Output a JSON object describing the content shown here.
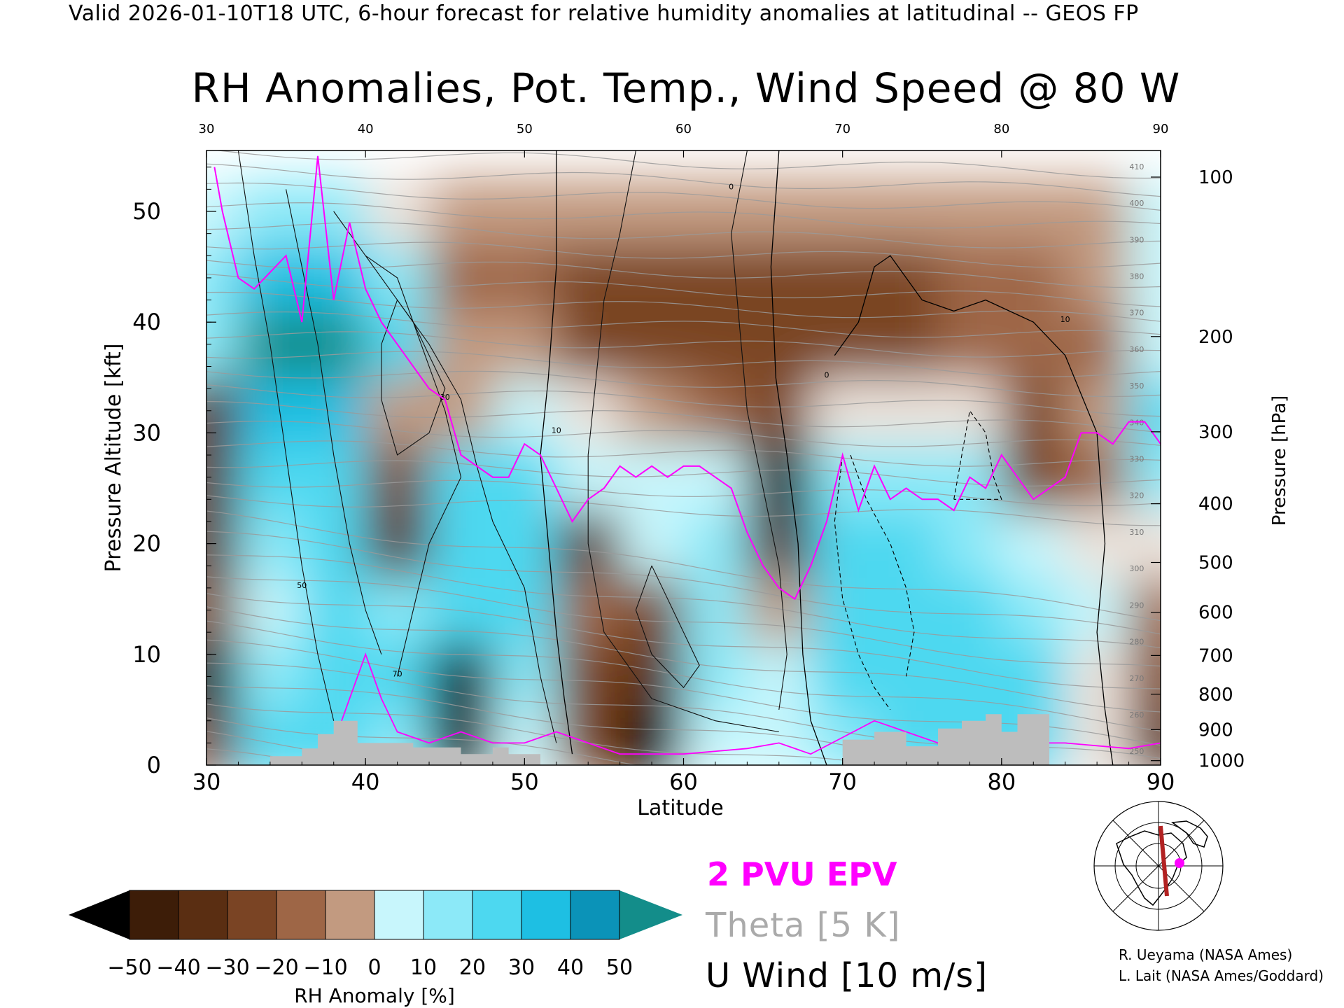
{
  "header": "Valid 2026-01-10T18 UTC, 6-hour forecast for relative humidity anomalies at latitudinal -- GEOS FP",
  "chart_data": {
    "type": "heatmap",
    "title": "RH Anomalies, Pot. Temp., Wind Speed @ 80 W",
    "xlabel": "Latitude",
    "ylabel": "Pressure Altitude [kft]",
    "y2label": "Pressure [hPa]",
    "xlim": [
      30,
      90
    ],
    "ylim": [
      0,
      55.5
    ],
    "x_ticks": [
      30,
      40,
      50,
      60,
      70,
      80,
      90
    ],
    "y_ticks": [
      0,
      10,
      20,
      30,
      40,
      50
    ],
    "pressure_ticks": [
      {
        "label": "100",
        "kft": 53.1
      },
      {
        "label": "200",
        "kft": 38.7
      },
      {
        "label": "300",
        "kft": 30.1
      },
      {
        "label": "400",
        "kft": 23.6
      },
      {
        "label": "500",
        "kft": 18.3
      },
      {
        "label": "600",
        "kft": 13.8
      },
      {
        "label": "700",
        "kft": 9.9
      },
      {
        "label": "800",
        "kft": 6.4
      },
      {
        "label": "900",
        "kft": 3.2
      },
      {
        "label": "1000",
        "kft": 0.4
      }
    ],
    "colorbar": {
      "label": "RH Anomaly [%]",
      "ticks": [
        "−50",
        "−40",
        "−30",
        "−20",
        "−10",
        "0",
        "10",
        "20",
        "30",
        "40",
        "50"
      ],
      "colors": [
        "#3d1d08",
        "#5a2e12",
        "#7a4424",
        "#9e6646",
        "#c29a80",
        "#ede3db",
        "#c8f6fc",
        "#8ce9f8",
        "#4dd8f0",
        "#1ebfe3",
        "#0b93b8"
      ],
      "under_color": "#000000",
      "over_color": "#138d8a"
    },
    "rh_anomaly_grid": {
      "lat": [
        30,
        34,
        38,
        42,
        46,
        50,
        54,
        58,
        62,
        66,
        70,
        74,
        78,
        82,
        86,
        90
      ],
      "kft": [
        2,
        8,
        14,
        20,
        26,
        32,
        38,
        44,
        50
      ],
      "values": [
        [
          -30,
          30,
          30,
          20,
          -50,
          10,
          -30,
          -50,
          10,
          5,
          20,
          30,
          30,
          30,
          0,
          -40
        ],
        [
          -50,
          20,
          30,
          30,
          -50,
          20,
          -30,
          -40,
          20,
          10,
          30,
          30,
          30,
          30,
          0,
          -30
        ],
        [
          -30,
          10,
          30,
          20,
          30,
          30,
          -20,
          -30,
          20,
          -10,
          30,
          30,
          30,
          20,
          10,
          -20
        ],
        [
          -40,
          20,
          30,
          -40,
          30,
          30,
          -40,
          10,
          20,
          -40,
          30,
          30,
          20,
          10,
          0,
          0
        ],
        [
          -40,
          30,
          30,
          -30,
          30,
          30,
          10,
          10,
          10,
          -50,
          20,
          20,
          20,
          -30,
          -20,
          20
        ],
        [
          -40,
          40,
          40,
          -10,
          -10,
          10,
          0,
          -10,
          -20,
          -30,
          0,
          0,
          0,
          -30,
          -10,
          30
        ],
        [
          20,
          50,
          50,
          30,
          -10,
          -10,
          -30,
          -30,
          -30,
          -30,
          -30,
          -30,
          -20,
          -20,
          -20,
          10
        ],
        [
          20,
          40,
          40,
          20,
          -20,
          -20,
          -30,
          -30,
          -30,
          -30,
          -30,
          -30,
          -25,
          -20,
          -15,
          5
        ],
        [
          10,
          20,
          20,
          0,
          -10,
          -10,
          -10,
          -10,
          -10,
          -10,
          -10,
          -10,
          -10,
          -10,
          -10,
          5
        ]
      ]
    },
    "epv_2pvu_line": [
      [
        30.5,
        54
      ],
      [
        31,
        50
      ],
      [
        32,
        44
      ],
      [
        33,
        43
      ],
      [
        35,
        46
      ],
      [
        36,
        40
      ],
      [
        37,
        55
      ],
      [
        38,
        42
      ],
      [
        39,
        49
      ],
      [
        40,
        43
      ],
      [
        41,
        40
      ],
      [
        42,
        38
      ],
      [
        43,
        36
      ],
      [
        44,
        34
      ],
      [
        45,
        33
      ],
      [
        46,
        28
      ],
      [
        47,
        27
      ],
      [
        48,
        26
      ],
      [
        49,
        26
      ],
      [
        50,
        29
      ],
      [
        51,
        28
      ],
      [
        52,
        25
      ],
      [
        53,
        22
      ],
      [
        54,
        24
      ],
      [
        55,
        25
      ],
      [
        56,
        27
      ],
      [
        57,
        26
      ],
      [
        58,
        27
      ],
      [
        59,
        26
      ],
      [
        60,
        27
      ],
      [
        61,
        27
      ],
      [
        62,
        26
      ],
      [
        63,
        25
      ],
      [
        64,
        21
      ],
      [
        65,
        18
      ],
      [
        66,
        16
      ],
      [
        67,
        15
      ],
      [
        68,
        18
      ],
      [
        69,
        22
      ],
      [
        70,
        28
      ],
      [
        71,
        23
      ],
      [
        72,
        27
      ],
      [
        73,
        24
      ],
      [
        74,
        25
      ],
      [
        75,
        24
      ],
      [
        76,
        24
      ],
      [
        77,
        23
      ],
      [
        78,
        26
      ],
      [
        79,
        25
      ],
      [
        80,
        28
      ],
      [
        81,
        26
      ],
      [
        82,
        24
      ],
      [
        83,
        25
      ],
      [
        84,
        26
      ],
      [
        85,
        30
      ],
      [
        86,
        30
      ],
      [
        87,
        29
      ],
      [
        88,
        31
      ],
      [
        89,
        31
      ],
      [
        90,
        29
      ]
    ],
    "wind_zero_line": [
      [
        52,
        55.5
      ],
      [
        52,
        45
      ],
      [
        51.5,
        35
      ],
      [
        51,
        28
      ],
      [
        51.5,
        20
      ],
      [
        52,
        12
      ],
      [
        52.5,
        6
      ],
      [
        53,
        1
      ]
    ],
    "wind_zero_line_2": [
      [
        66,
        55.5
      ],
      [
        65.5,
        45
      ],
      [
        65.8,
        35
      ],
      [
        66.5,
        28
      ],
      [
        67.2,
        20
      ],
      [
        67.5,
        10
      ],
      [
        68,
        4
      ],
      [
        69,
        0
      ]
    ],
    "wind_zero_line_3": [
      [
        69.5,
        37
      ],
      [
        71,
        40
      ],
      [
        72,
        45
      ],
      [
        73,
        46
      ],
      [
        75,
        42
      ],
      [
        77,
        41
      ],
      [
        79,
        42
      ],
      [
        82,
        40
      ],
      [
        84,
        37
      ],
      [
        86,
        30
      ],
      [
        86.5,
        20
      ],
      [
        86,
        12
      ],
      [
        86.5,
        5
      ],
      [
        87,
        0
      ]
    ],
    "terrain": [
      [
        34,
        0
      ],
      [
        34,
        0.8
      ],
      [
        36,
        0.8
      ],
      [
        36,
        1.5
      ],
      [
        37,
        1.5
      ],
      [
        37,
        2.8
      ],
      [
        38,
        2.8
      ],
      [
        38,
        4
      ],
      [
        39.5,
        4
      ],
      [
        39.5,
        2
      ],
      [
        43,
        2
      ],
      [
        43,
        1.6
      ],
      [
        46,
        1.6
      ],
      [
        46,
        1
      ],
      [
        48,
        1
      ],
      [
        48,
        1.6
      ],
      [
        49,
        1.6
      ],
      [
        49,
        1
      ],
      [
        51,
        1
      ],
      [
        51,
        0
      ],
      [
        70,
        0
      ],
      [
        70,
        2.3
      ],
      [
        72,
        2.3
      ],
      [
        72,
        3
      ],
      [
        74,
        3
      ],
      [
        74,
        1.7
      ],
      [
        76,
        1.7
      ],
      [
        76,
        3.3
      ],
      [
        77.5,
        3.3
      ],
      [
        77.5,
        4
      ],
      [
        79,
        4
      ],
      [
        79,
        4.6
      ],
      [
        80,
        4.6
      ],
      [
        80,
        3
      ],
      [
        81,
        3
      ],
      [
        81,
        4.6
      ],
      [
        83,
        4.6
      ],
      [
        83,
        0
      ],
      [
        90,
        0
      ]
    ],
    "theta_labels": [
      "250",
      "260",
      "270",
      "280",
      "290",
      "300",
      "310",
      "320",
      "330",
      "340",
      "350",
      "360",
      "370",
      "380",
      "390",
      "400",
      "410"
    ],
    "wind_labels": [
      "0",
      "10",
      "30",
      "50",
      "70"
    ]
  },
  "legend": {
    "epv": "2 PVU EPV",
    "theta": "Theta [5 K]",
    "wind": "U Wind [10 m/s]"
  },
  "credits": [
    "R. Ueyama (NASA Ames)",
    "L. Lait (NASA Ames/Goddard)"
  ]
}
